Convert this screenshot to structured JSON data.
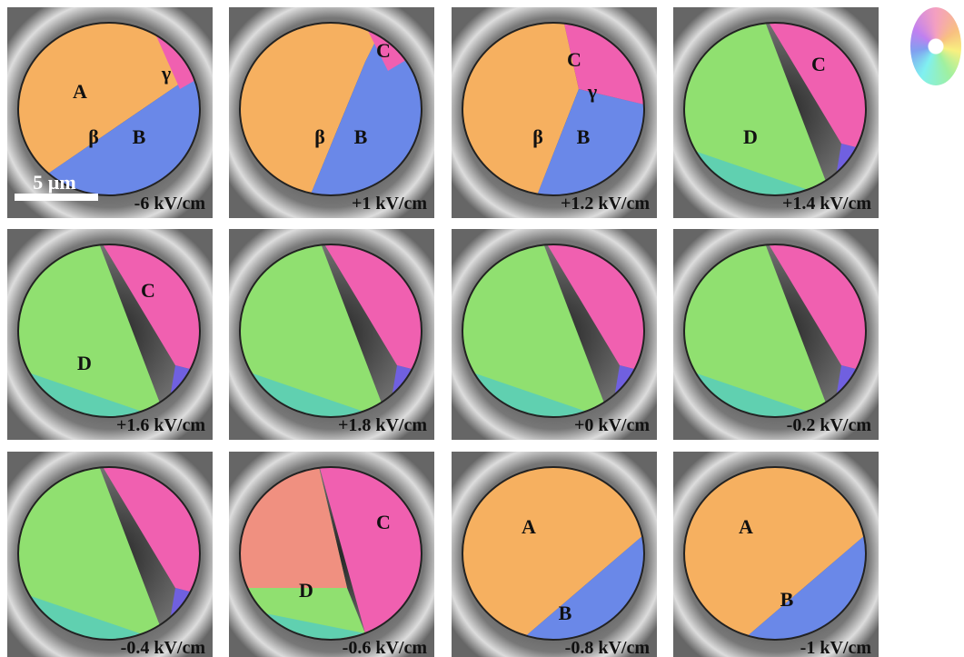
{
  "figure": {
    "scale_bar": "5 µm",
    "panels": [
      {
        "field": "-6 kV/cm",
        "domains": [
          "A",
          "γ",
          "β",
          "B"
        ]
      },
      {
        "field": "+1 kV/cm",
        "domains": [
          "C",
          "β",
          "B"
        ]
      },
      {
        "field": "+1.2 kV/cm",
        "domains": [
          "C",
          "γ",
          "β",
          "B"
        ]
      },
      {
        "field": "+1.4 kV/cm",
        "domains": [
          "C",
          "D"
        ]
      },
      {
        "field": "+1.6 kV/cm",
        "domains": [
          "C",
          "D"
        ]
      },
      {
        "field": "+1.8 kV/cm",
        "domains": []
      },
      {
        "field": "+0 kV/cm",
        "domains": []
      },
      {
        "field": "-0.2 kV/cm",
        "domains": []
      },
      {
        "field": "-0.4 kV/cm",
        "domains": []
      },
      {
        "field": "-0.6 kV/cm",
        "domains": [
          "C",
          "D"
        ]
      },
      {
        "field": "-0.8 kV/cm",
        "domains": [
          "A",
          "B"
        ]
      },
      {
        "field": "-1 kV/cm",
        "domains": [
          "A",
          "B"
        ]
      }
    ]
  }
}
